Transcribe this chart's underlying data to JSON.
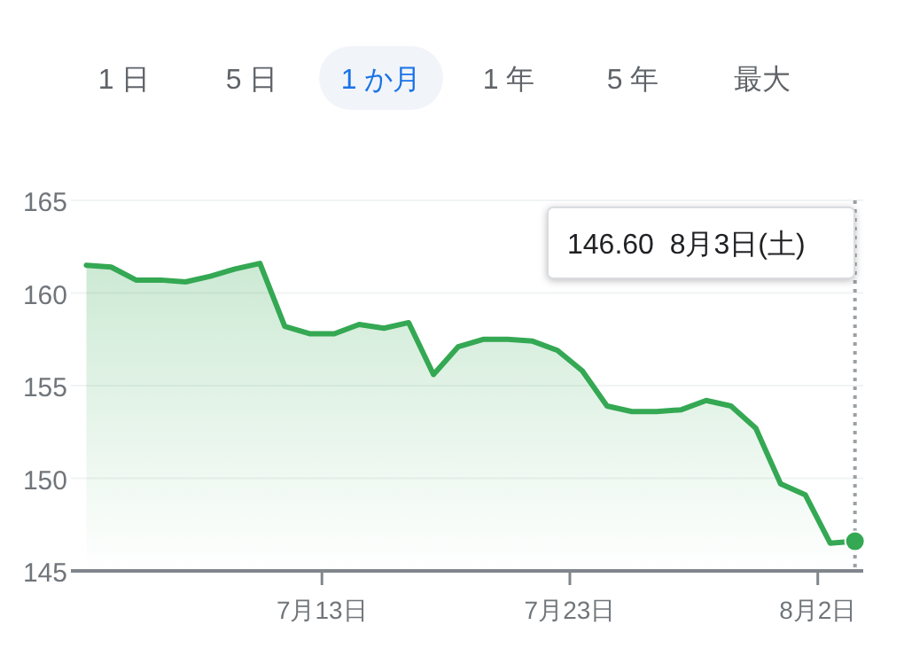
{
  "chart_data": {
    "type": "area",
    "annotations": [
      "1 日",
      "5 日",
      "1 か月",
      "1 年",
      "5 年",
      "最大",
      "146.60  8月3日(土)"
    ],
    "x": [
      "--07-03T12:00",
      "--07-04T12:00",
      "--07-05T12:00",
      "--07-06T12:00",
      "--07-07T12:00",
      "--07-08T12:00",
      "--07-09T12:00",
      "--07-10T12:00",
      "--07-11T12:00",
      "--07-12T12:00",
      "--07-13T12:00",
      "--07-14T12:00",
      "--07-15T12:00",
      "--07-16T12:00",
      "--07-17T12:00",
      "--07-18T12:00",
      "--07-19T12:00",
      "--07-20T12:00",
      "--07-21T12:00",
      "--07-22T12:00",
      "--07-23T12:00",
      "--07-24T12:00",
      "--07-25T12:00",
      "--07-26T12:00",
      "--07-27T12:00",
      "--07-28T12:00",
      "--07-29T12:00",
      "--07-30T12:00",
      "--07-31T12:00",
      "--08-01T12:00",
      "--08-02T12:00",
      "--08-03T12:00"
    ],
    "series": [
      {
        "color": "#34a853",
        "values": [
          161.5,
          161.4,
          160.7,
          160.7,
          160.6,
          160.9,
          161.3,
          161.6,
          158.2,
          157.8,
          157.8,
          158.3,
          158.1,
          158.4,
          155.6,
          157.1,
          157.5,
          157.5,
          157.4,
          156.9,
          155.8,
          153.9,
          153.6,
          153.6,
          153.7,
          154.2,
          153.9,
          152.7,
          149.7,
          149.1,
          146.5,
          146.6
        ]
      }
    ],
    "xlim": [
      "--07-02T21:00",
      "--08-03T20:00"
    ],
    "xticks": [
      {
        "value": "--07-13",
        "label": "7月13日"
      },
      {
        "value": "--07-23",
        "label": "7月23日"
      },
      {
        "value": "--08-02",
        "label": "8月2日"
      }
    ],
    "ylim": [
      145,
      165
    ],
    "yticks": [
      145,
      150,
      155,
      160,
      165
    ],
    "grid": "y",
    "ref_lines": [
      {
        "axis": "x",
        "value": "--08-03T12:00",
        "color": "#9aa0a6",
        "line_style": "dotted"
      }
    ]
  }
}
